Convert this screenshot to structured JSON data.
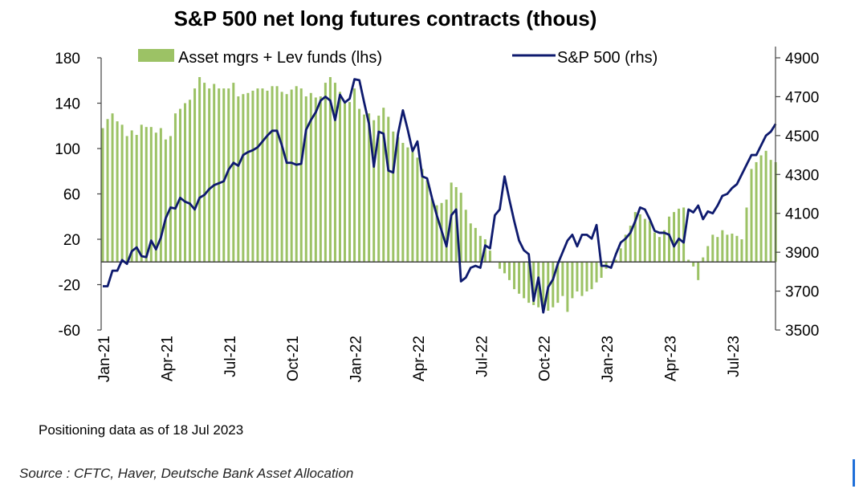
{
  "title": "S&P 500 net long futures contracts  (thous)",
  "note": "Positioning data as of 18 Jul 2023",
  "source": "Source : CFTC, Haver, Deutsche Bank Asset Allocation",
  "colors": {
    "bars": "#9cc265",
    "line": "#0e1a6e",
    "axis": "#444444"
  },
  "chart_data": {
    "type": "bar+line",
    "title": "S&P 500 net long futures contracts  (thous)",
    "legend_position": "top",
    "x_tick_labels": [
      "Jan-21",
      "Apr-21",
      "Jul-21",
      "Oct-21",
      "Jan-22",
      "Apr-22",
      "Jul-22",
      "Oct-22",
      "Jan-23",
      "Apr-23",
      "Jul-23"
    ],
    "left_axis": {
      "ticks": [
        180,
        140,
        100,
        60,
        20,
        -20,
        -60
      ],
      "tick_labels": [
        "180",
        "140",
        "100",
        "60",
        "20",
        "-20",
        "-60"
      ],
      "range": [
        -60,
        180
      ]
    },
    "right_axis": {
      "ticks": [
        4900,
        4700,
        4500,
        4300,
        4100,
        3900,
        3700,
        3500
      ],
      "tick_labels": [
        "4900",
        "4700",
        "4500",
        "4300",
        "4100",
        "3900",
        "3700",
        "3500"
      ],
      "range": [
        3500,
        4900
      ]
    },
    "start_month": "2021-01",
    "weeks_per_month": 4.333,
    "series": [
      {
        "name": "Asset mgrs + Lev funds (lhs)",
        "kind": "bar",
        "axis": "left",
        "values": [
          118,
          126,
          131,
          124,
          121,
          111,
          116,
          112,
          121,
          119,
          119,
          114,
          118,
          108,
          111,
          131,
          135,
          140,
          143,
          153,
          163,
          158,
          153,
          157,
          153,
          153,
          153,
          158,
          146,
          148,
          149,
          151,
          153,
          153,
          151,
          155,
          155,
          150,
          148,
          152,
          155,
          153,
          146,
          149,
          145,
          146,
          158,
          163,
          158,
          150,
          142,
          141,
          153,
          135,
          130,
          131,
          125,
          129,
          136,
          128,
          115,
          110,
          105,
          101,
          97,
          92,
          82,
          72,
          56,
          50,
          52,
          55,
          70,
          66,
          61,
          46,
          34,
          30,
          23,
          20,
          10,
          0,
          -6,
          -10,
          -16,
          -24,
          -28,
          -32,
          -36,
          -38,
          -40,
          -42,
          -43,
          -40,
          -36,
          -30,
          -44,
          -32,
          -26,
          -30,
          -26,
          -24,
          -18,
          -14,
          -6,
          0,
          2,
          12,
          24,
          32,
          44,
          42,
          38,
          36,
          26,
          22,
          28,
          40,
          44,
          47,
          48,
          2,
          -4,
          -16,
          4,
          14,
          24,
          22,
          28,
          24,
          25,
          23,
          20,
          48,
          82,
          88,
          94,
          98,
          90,
          88
        ]
      },
      {
        "name": "S&P 500 (rhs)",
        "kind": "line",
        "axis": "right",
        "values": [
          3725,
          3725,
          3805,
          3805,
          3860,
          3840,
          3905,
          3925,
          3880,
          3875,
          3960,
          3915,
          3975,
          4075,
          4130,
          4125,
          4180,
          4160,
          4150,
          4120,
          4180,
          4195,
          4225,
          4245,
          4255,
          4265,
          4325,
          4360,
          4345,
          4400,
          4415,
          4425,
          4440,
          4470,
          4500,
          4525,
          4525,
          4450,
          4360,
          4360,
          4350,
          4355,
          4530,
          4580,
          4620,
          4680,
          4700,
          4680,
          4580,
          4710,
          4670,
          4690,
          4790,
          4785,
          4670,
          4560,
          4340,
          4520,
          4510,
          4320,
          4310,
          4510,
          4630,
          4530,
          4420,
          4470,
          4290,
          4280,
          4180,
          4090,
          4010,
          3930,
          4090,
          4120,
          3750,
          3770,
          3820,
          3830,
          3820,
          3935,
          3920,
          4090,
          4120,
          4290,
          4170,
          4060,
          3960,
          3910,
          3890,
          3650,
          3770,
          3590,
          3720,
          3760,
          3840,
          3900,
          3960,
          3990,
          3930,
          3990,
          3990,
          3970,
          4040,
          3830,
          3830,
          3820,
          3890,
          3950,
          3970,
          4000,
          4060,
          4130,
          4120,
          4070,
          4010,
          4000,
          4000,
          3990,
          3930,
          3970,
          3950,
          4120,
          4105,
          4140,
          4070,
          4110,
          4100,
          4140,
          4190,
          4200,
          4230,
          4250,
          4300,
          4350,
          4400,
          4400,
          4450,
          4500,
          4520,
          4560
        ]
      }
    ]
  }
}
